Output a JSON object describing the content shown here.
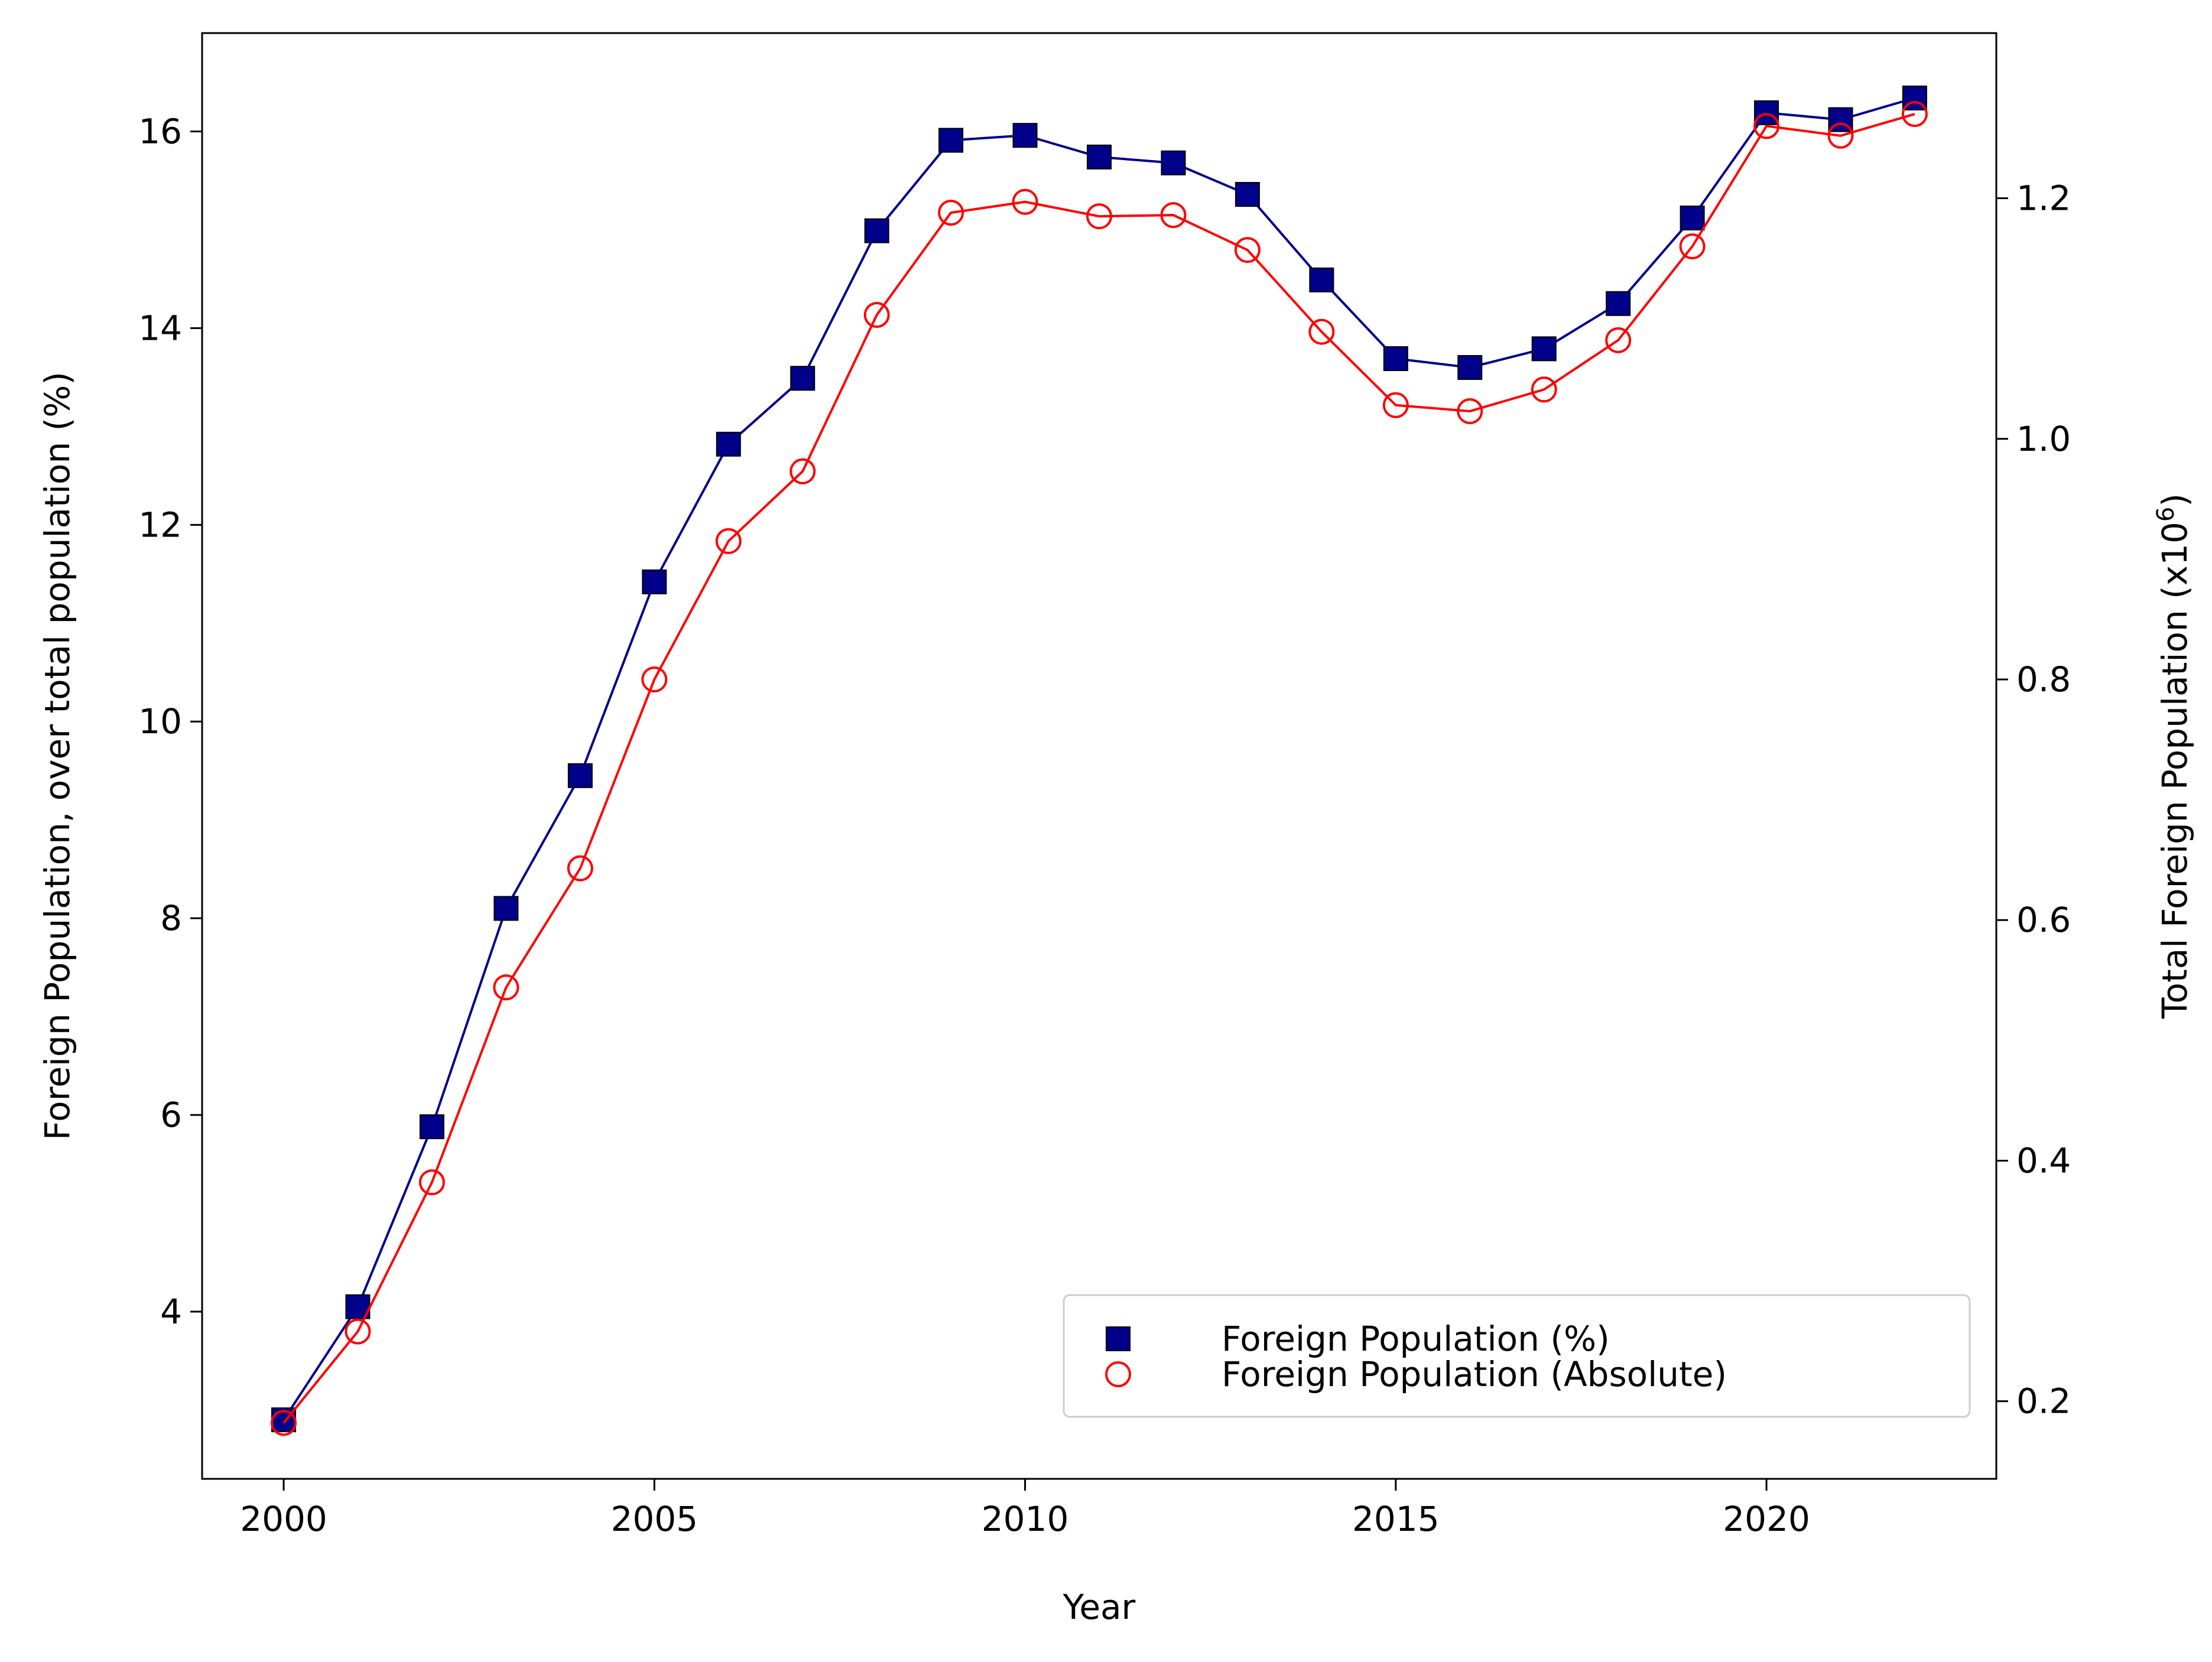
{
  "chart_data": {
    "type": "line",
    "xlabel": "Year",
    "ylabel_left": "Foreign Population, over total population (%)",
    "ylabel_right": "Total Foreign Population (x10",
    "ylabel_right_exponent": "6",
    "ylabel_right_close": ")",
    "xlim": [
      1998.9,
      2023.1
    ],
    "ylim_left": [
      2.3,
      17.0
    ],
    "ylim_right": [
      0.1355,
      1.3373
    ],
    "x_ticks": [
      2000,
      2005,
      2010,
      2015,
      2020
    ],
    "y_ticks_left": [
      4,
      6,
      8,
      10,
      12,
      14,
      16
    ],
    "y_ticks_right": [
      "0.2",
      "0.4",
      "0.6",
      "0.8",
      "1.0",
      "1.2"
    ],
    "x": [
      2000,
      2001,
      2002,
      2003,
      2004,
      2005,
      2006,
      2007,
      2008,
      2009,
      2010,
      2011,
      2012,
      2013,
      2014,
      2015,
      2016,
      2017,
      2018,
      2019,
      2020,
      2021,
      2022
    ],
    "series": [
      {
        "name": "Foreign Population (%)",
        "axis": "left",
        "marker": "square",
        "color": "#00008b",
        "values": [
          2.9,
          4.05,
          5.88,
          8.1,
          9.45,
          11.42,
          12.82,
          13.49,
          14.99,
          15.91,
          15.96,
          15.74,
          15.68,
          15.36,
          14.49,
          13.69,
          13.6,
          13.79,
          14.25,
          15.12,
          16.19,
          16.12,
          16.34
        ]
      },
      {
        "name": "Foreign Population (Absolute)",
        "axis": "right",
        "marker": "circle-open",
        "color": "#ff0000",
        "values": [
          0.182,
          0.258,
          0.382,
          0.544,
          0.643,
          0.8,
          0.915,
          0.973,
          1.103,
          1.188,
          1.197,
          1.185,
          1.186,
          1.157,
          1.089,
          1.028,
          1.023,
          1.041,
          1.082,
          1.16,
          1.26,
          1.252,
          1.27
        ]
      }
    ],
    "legend": {
      "position": "lower-right",
      "entries": [
        "Foreign Population (%)",
        "Foreign Population (Absolute)"
      ]
    }
  }
}
